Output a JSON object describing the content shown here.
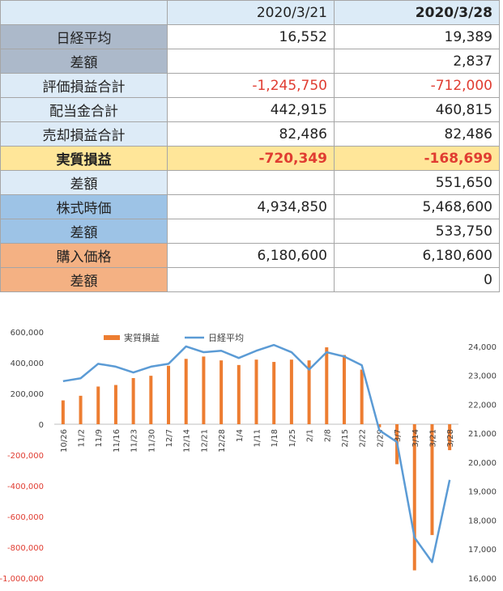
{
  "table": {
    "header": [
      "",
      "2020/3/21",
      "2020/3/28"
    ],
    "rows": [
      {
        "label": "日経平均",
        "v1": "16,552",
        "v2": "19,389",
        "bg": "#acb9ca"
      },
      {
        "label": "差額",
        "v1": "",
        "v2": "2,837",
        "bg": "#acb9ca"
      },
      {
        "label": "評価損益合計",
        "v1": "-1,245,750",
        "v2": "-712,000",
        "bg": "#ddebf7",
        "neg": true
      },
      {
        "label": "配当金合計",
        "v1": "442,915",
        "v2": "460,815",
        "bg": "#ddebf7"
      },
      {
        "label": "売却損益合計",
        "v1": "82,486",
        "v2": "82,486",
        "bg": "#ddebf7"
      },
      {
        "label": "実質損益",
        "v1": "-720,349",
        "v2": "-168,699",
        "bg": "#ffe699",
        "rowbg": "#ffe699",
        "neg": true,
        "bold": true
      },
      {
        "label": "差額",
        "v1": "",
        "v2": "551,650",
        "bg": "#ddebf7"
      },
      {
        "label": "株式時価",
        "v1": "4,934,850",
        "v2": "5,468,600",
        "bg": "#9dc3e6"
      },
      {
        "label": "差額",
        "v1": "",
        "v2": "533,750",
        "bg": "#9dc3e6"
      },
      {
        "label": "購入価格",
        "v1": "6,180,600",
        "v2": "6,180,600",
        "bg": "#f4b183"
      },
      {
        "label": "差額",
        "v1": "",
        "v2": "0",
        "bg": "#f4b183"
      }
    ]
  },
  "chart_data": {
    "type": "bar",
    "categories": [
      "10/26",
      "11/2",
      "11/9",
      "11/16",
      "11/23",
      "11/30",
      "12/7",
      "12/14",
      "12/21",
      "12/28",
      "1/4",
      "1/11",
      "1/18",
      "1/25",
      "2/1",
      "2/8",
      "2/15",
      "2/22",
      "2/29",
      "3/7",
      "3/14",
      "3/21",
      "3/28"
    ],
    "series": [
      {
        "name": "実質損益",
        "kind": "bar",
        "axis": "left",
        "color": "#ed7d31",
        "values": [
          155000,
          185000,
          245000,
          255000,
          300000,
          315000,
          380000,
          425000,
          440000,
          415000,
          385000,
          420000,
          405000,
          420000,
          415000,
          500000,
          450000,
          355000,
          -20000,
          -260000,
          -950000,
          -720349,
          -168699
        ]
      },
      {
        "name": "日経平均",
        "kind": "line",
        "axis": "right",
        "color": "#5b9bd5",
        "values": [
          22800,
          22900,
          23400,
          23300,
          23100,
          23300,
          23400,
          24000,
          23800,
          23850,
          23600,
          23850,
          24050,
          23800,
          23200,
          23800,
          23650,
          23350,
          21100,
          20700,
          17400,
          16552,
          19389
        ]
      }
    ],
    "y_left": {
      "min": -1000000,
      "max": 600000,
      "ticks": [
        "600,000",
        "400,000",
        "200,000",
        "0",
        "-200,000",
        "-400,000",
        "-600,000",
        "-800,000",
        "-1,000,000"
      ]
    },
    "y_right": {
      "min": 16000,
      "max": 24500,
      "ticks": [
        "24,000",
        "23,000",
        "22,000",
        "21,000",
        "20,000",
        "19,000",
        "18,000",
        "17,000",
        "16,000"
      ]
    },
    "legend_position": "top-center",
    "negative_tick_color": "#e03c31"
  }
}
